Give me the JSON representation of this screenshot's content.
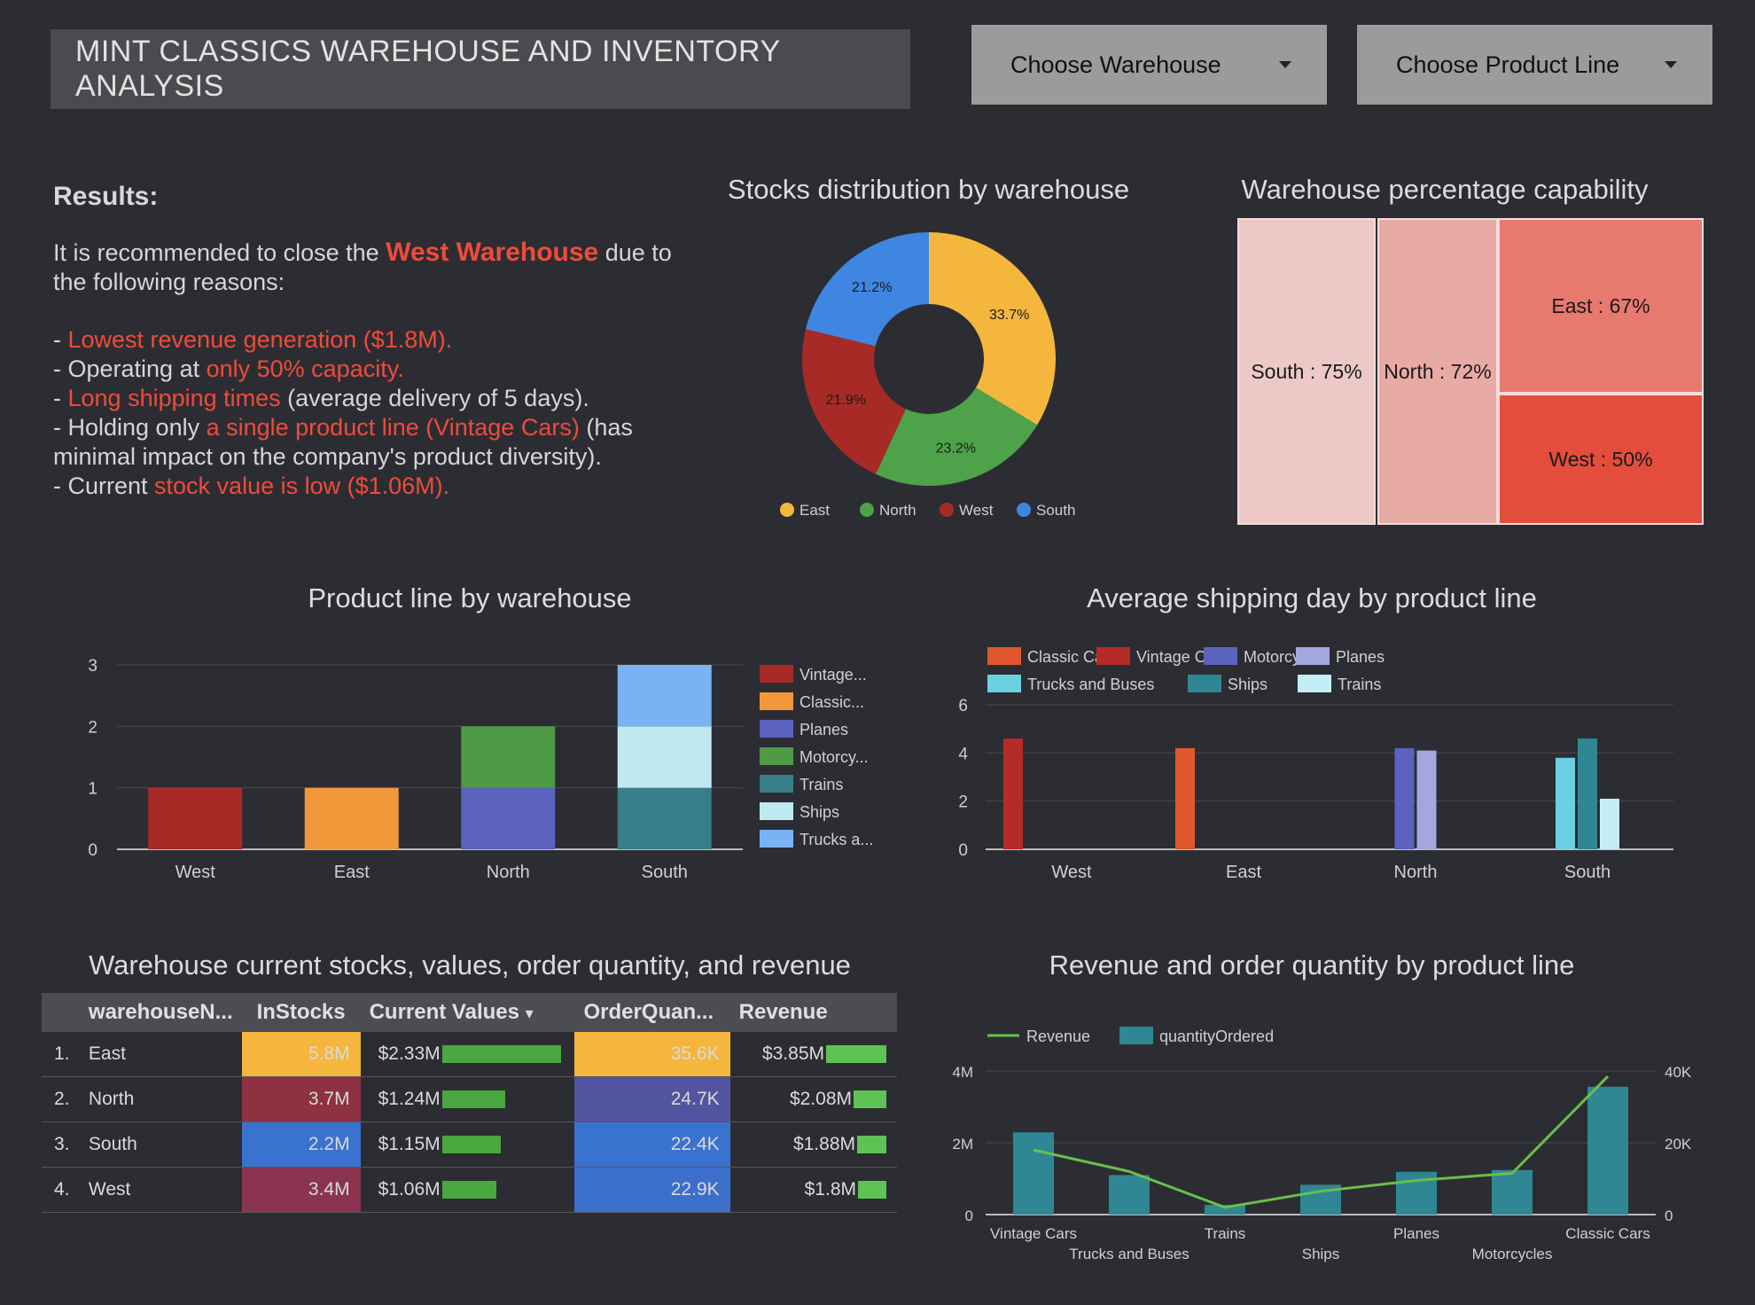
{
  "header": {
    "title": "MINT CLASSICS WAREHOUSE AND INVENTORY ANALYSIS",
    "warehouse_dropdown": "Choose Warehouse",
    "productline_dropdown": "Choose Product Line"
  },
  "results": {
    "heading": "Results:",
    "intro_pre": "It is recommended to close the ",
    "intro_highlight": "West Warehouse",
    "intro_post": " due to the following reasons:",
    "r1_pre": "- ",
    "r1_red": "Lowest revenue generation ($1.8M).",
    "r2_pre": "- Operating at ",
    "r2_red": "only 50% capacity.",
    "r3_pre": "- ",
    "r3_red": "Long shipping times",
    "r3_post": " (average delivery of 5 days).",
    "r4_pre": "- Holding only ",
    "r4_red": "a single product line (Vintage Cars)",
    "r4_post": " (has minimal impact on the company's product diversity).",
    "r5_pre": "- Current ",
    "r5_red": "stock value is low ($1.06M)."
  },
  "colors": {
    "east": "#f5b63d",
    "north": "#4ea24a",
    "west": "#a82a27",
    "south": "#3f86e3"
  },
  "chart_data": [
    {
      "type": "pie",
      "title": "Stocks distribution by warehouse",
      "labels": [
        "East",
        "North",
        "West",
        "South"
      ],
      "values": [
        33.7,
        23.2,
        21.9,
        21.2
      ],
      "value_labels": [
        "33.7%",
        "23.2%",
        "21.9%",
        "21.2%"
      ],
      "colors": [
        "#f5b63d",
        "#4ea24a",
        "#a82a27",
        "#3f86e3"
      ],
      "legend": "bottom"
    },
    {
      "type": "treemap",
      "title": "Warehouse percentage capability",
      "items": [
        {
          "label": "South : 75%",
          "value": 75
        },
        {
          "label": "North : 72%",
          "value": 72
        },
        {
          "label": "East : 67%",
          "value": 67
        },
        {
          "label": "West : 50%",
          "value": 50
        }
      ]
    },
    {
      "type": "bar",
      "stacked": true,
      "title": "Product line by warehouse",
      "categories": [
        "West",
        "East",
        "North",
        "South"
      ],
      "ylim": [
        0,
        3
      ],
      "yticks": [
        "0",
        "1",
        "2",
        "3"
      ],
      "legend": "right",
      "series": [
        {
          "name": "Vintage...",
          "color": "#a82a27",
          "values": [
            1,
            0,
            0,
            0
          ]
        },
        {
          "name": "Classic...",
          "color": "#f2983a",
          "values": [
            0,
            1,
            0,
            0
          ]
        },
        {
          "name": "Planes",
          "color": "#5b63bf",
          "values": [
            0,
            0,
            1,
            0
          ]
        },
        {
          "name": "Motorcy...",
          "color": "#4e9a45",
          "values": [
            0,
            0,
            1,
            0
          ]
        },
        {
          "name": "Trains",
          "color": "#377e8a",
          "values": [
            0,
            0,
            0,
            1
          ]
        },
        {
          "name": "Ships",
          "color": "#bfe9f0",
          "values": [
            0,
            0,
            0,
            1
          ]
        },
        {
          "name": "Trucks a...",
          "color": "#7ab3f3",
          "values": [
            0,
            0,
            0,
            1
          ]
        }
      ]
    },
    {
      "type": "bar",
      "title": "Average shipping day by product line",
      "categories": [
        "West",
        "East",
        "North",
        "South"
      ],
      "ylim": [
        0,
        6
      ],
      "yticks": [
        "0",
        "2",
        "4",
        "6"
      ],
      "legend": "top",
      "series": [
        {
          "name": "Classic Cars",
          "color": "#e0572f",
          "values": [
            null,
            4.2,
            null,
            null
          ]
        },
        {
          "name": "Vintage Cars",
          "color": "#b52b27",
          "values": [
            4.6,
            null,
            null,
            null
          ]
        },
        {
          "name": "Motorcycles",
          "color": "#5b63bf",
          "values": [
            null,
            null,
            4.2,
            null
          ]
        },
        {
          "name": "Planes",
          "color": "#a4a7df",
          "values": [
            null,
            null,
            4.1,
            null
          ]
        },
        {
          "name": "Trucks and Buses",
          "color": "#6cd0e3",
          "values": [
            null,
            null,
            null,
            3.8
          ]
        },
        {
          "name": "Ships",
          "color": "#2f8794",
          "values": [
            null,
            null,
            null,
            4.6
          ]
        },
        {
          "name": "Trains",
          "color": "#c3eef5",
          "values": [
            null,
            null,
            null,
            2.1
          ]
        }
      ]
    },
    {
      "type": "table",
      "title": "Warehouse current stocks, values, order quantity, and revenue",
      "columns": [
        "warehouseN...",
        "InStocks",
        "Current Values",
        "OrderQuan...",
        "Revenue"
      ],
      "sort_indicator": "▾",
      "rows": [
        {
          "idx": "1.",
          "name": "East",
          "instocks": "5.8M",
          "values": "$2.33M",
          "values_num": 2.33,
          "order": "35.6K",
          "revenue": "$3.85M",
          "revenue_num": 3.85,
          "c1": "#f5b63d",
          "c2": "#f5b63d"
        },
        {
          "idx": "2.",
          "name": "North",
          "instocks": "3.7M",
          "values": "$1.24M",
          "values_num": 1.24,
          "order": "24.7K",
          "revenue": "$2.08M",
          "revenue_num": 2.08,
          "c1": "#8e3140",
          "c2": "#5354a0"
        },
        {
          "idx": "3.",
          "name": "South",
          "instocks": "2.2M",
          "values": "$1.15M",
          "values_num": 1.15,
          "order": "22.4K",
          "revenue": "$1.88M",
          "revenue_num": 1.88,
          "c1": "#3a72d0",
          "c2": "#3a72d0"
        },
        {
          "idx": "4.",
          "name": "West",
          "instocks": "3.4M",
          "values": "$1.06M",
          "values_num": 1.06,
          "order": "22.9K",
          "revenue": "$1.8M",
          "revenue_num": 1.8,
          "c1": "#8a3450",
          "c2": "#3c6fcc"
        }
      ]
    },
    {
      "type": "bar+line",
      "title": "Revenue and order quantity by product line",
      "categories": [
        "Vintage Cars",
        "Trucks and Buses",
        "Trains",
        "Ships",
        "Planes",
        "Motorcycles",
        "Classic Cars"
      ],
      "legend": "top",
      "yleft_ticks": [
        "0",
        "2M",
        "4M"
      ],
      "yright_ticks": [
        "0",
        "20K",
        "40K"
      ],
      "ylim_left": [
        0,
        4000000
      ],
      "ylim_right": [
        0,
        40000
      ],
      "series": [
        {
          "name": "Revenue",
          "kind": "line",
          "axis": "left",
          "color": "#6abf4b",
          "values": [
            1800000,
            1200000,
            200000,
            650000,
            950000,
            1150000,
            3850000
          ]
        },
        {
          "name": "quantityOrdered",
          "kind": "bar",
          "axis": "right",
          "color": "#2f8794",
          "values": [
            22900,
            11000,
            2700,
            8300,
            11900,
            12400,
            35600
          ]
        }
      ]
    }
  ]
}
